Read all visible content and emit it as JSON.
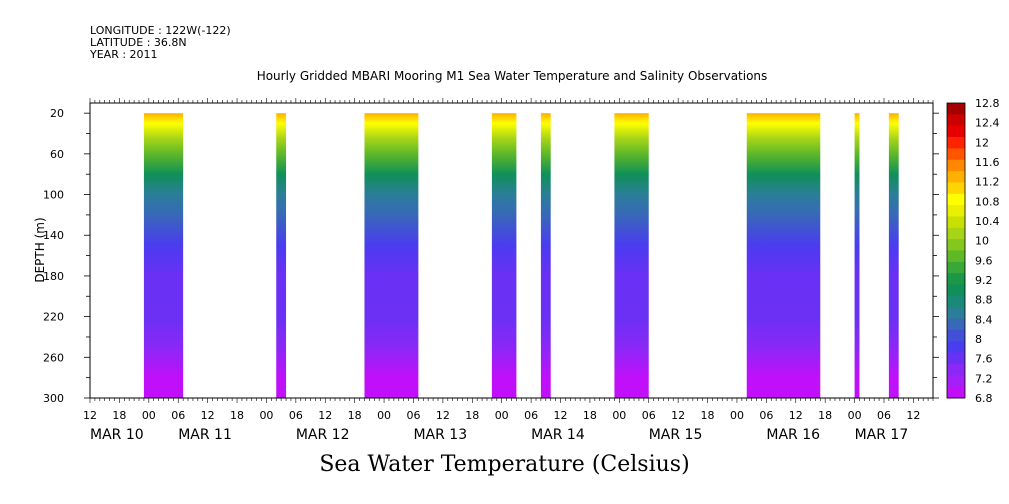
{
  "header": {
    "longitude": "LONGITUDE : 122W(-122)",
    "latitude": "LATITUDE : 36.8N",
    "year": "YEAR : 2011"
  },
  "chart_data": {
    "type": "heatmap",
    "title": "Hourly Gridded MBARI Mooring M1 Sea Water Temperature and Salinity Observations",
    "bottom_title": "Sea Water Temperature (Celsius)",
    "ylabel": "DEPTH (m)",
    "xlabel": "",
    "units": "Celsius",
    "y_ticks": [
      20,
      60,
      100,
      140,
      180,
      220,
      260,
      300
    ],
    "ylim": [
      300,
      10
    ],
    "y_reversed": true,
    "xlim_hours": [
      0,
      172
    ],
    "x_hour_ticks": [
      {
        "h": 0,
        "label": "12"
      },
      {
        "h": 6,
        "label": "18"
      },
      {
        "h": 12,
        "label": "00"
      },
      {
        "h": 18,
        "label": "06"
      },
      {
        "h": 24,
        "label": "12"
      },
      {
        "h": 30,
        "label": "18"
      },
      {
        "h": 36,
        "label": "00"
      },
      {
        "h": 42,
        "label": "06"
      },
      {
        "h": 48,
        "label": "12"
      },
      {
        "h": 54,
        "label": "18"
      },
      {
        "h": 60,
        "label": "00"
      },
      {
        "h": 66,
        "label": "06"
      },
      {
        "h": 72,
        "label": "12"
      },
      {
        "h": 78,
        "label": "18"
      },
      {
        "h": 84,
        "label": "00"
      },
      {
        "h": 90,
        "label": "06"
      },
      {
        "h": 96,
        "label": "12"
      },
      {
        "h": 102,
        "label": "18"
      },
      {
        "h": 108,
        "label": "00"
      },
      {
        "h": 114,
        "label": "06"
      },
      {
        "h": 120,
        "label": "12"
      },
      {
        "h": 126,
        "label": "18"
      },
      {
        "h": 132,
        "label": "00"
      },
      {
        "h": 138,
        "label": "06"
      },
      {
        "h": 144,
        "label": "12"
      },
      {
        "h": 150,
        "label": "18"
      },
      {
        "h": 156,
        "label": "00"
      },
      {
        "h": 162,
        "label": "06"
      },
      {
        "h": 168,
        "label": "12"
      }
    ],
    "x_date_labels": [
      {
        "h": 0,
        "label": "MAR 10"
      },
      {
        "h": 18,
        "label": "MAR 11"
      },
      {
        "h": 42,
        "label": "MAR 12"
      },
      {
        "h": 66,
        "label": "MAR 13"
      },
      {
        "h": 90,
        "label": "MAR 14"
      },
      {
        "h": 114,
        "label": "MAR 15"
      },
      {
        "h": 138,
        "label": "MAR 16"
      },
      {
        "h": 156,
        "label": "MAR 17"
      }
    ],
    "data_intervals_hours": [
      [
        11,
        19
      ],
      [
        38,
        40
      ],
      [
        56,
        67
      ],
      [
        82,
        87
      ],
      [
        92,
        94
      ],
      [
        107,
        114
      ],
      [
        134,
        149
      ],
      [
        156,
        157
      ],
      [
        163,
        165
      ]
    ],
    "depth_profile": [
      {
        "depth": 20,
        "temp": 11.4
      },
      {
        "depth": 30,
        "temp": 10.8
      },
      {
        "depth": 45,
        "temp": 10.2
      },
      {
        "depth": 60,
        "temp": 9.6
      },
      {
        "depth": 80,
        "temp": 9.0
      },
      {
        "depth": 100,
        "temp": 8.6
      },
      {
        "depth": 120,
        "temp": 8.3
      },
      {
        "depth": 150,
        "temp": 7.9
      },
      {
        "depth": 180,
        "temp": 7.7
      },
      {
        "depth": 220,
        "temp": 7.5
      },
      {
        "depth": 250,
        "temp": 7.3
      },
      {
        "depth": 280,
        "temp": 7.0
      },
      {
        "depth": 300,
        "temp": 6.8
      }
    ],
    "colorbar": {
      "levels": [
        "12.8",
        "12.4",
        "12",
        "11.6",
        "11.2",
        "10.8",
        "10.4",
        "10",
        "9.6",
        "9.2",
        "8.8",
        "8.4",
        "8",
        "7.6",
        "7.2",
        "6.8"
      ],
      "colors_top_to_bottom": [
        "#a50000",
        "#cc0000",
        "#e60000",
        "#ff2200",
        "#ff5500",
        "#ff8800",
        "#ffb000",
        "#ffd400",
        "#ffff00",
        "#e8f000",
        "#c8e000",
        "#a8d418",
        "#84c81e",
        "#5eb828",
        "#3aa838",
        "#1a9848",
        "#109058",
        "#1a8a78",
        "#2a7e98",
        "#3868b8",
        "#4250d8",
        "#4a3cf0",
        "#6a30f4",
        "#8a28f6",
        "#a420f8",
        "#c010fa"
      ]
    }
  }
}
